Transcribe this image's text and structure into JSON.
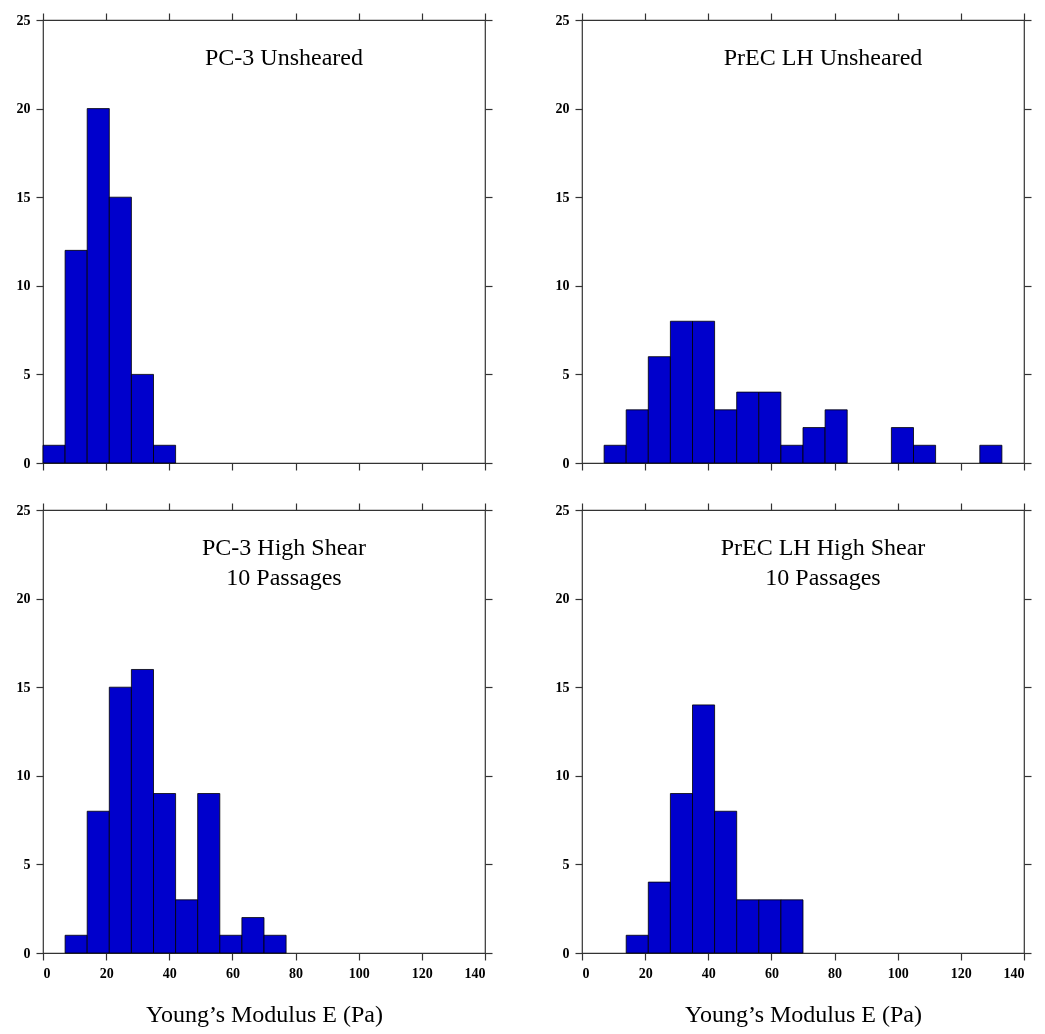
{
  "chart_data": [
    {
      "type": "histogram",
      "title": "PC-3 Unsheared",
      "bins": [
        0,
        7,
        14,
        21,
        28,
        35,
        42
      ],
      "values": [
        1,
        12,
        20,
        15,
        5,
        1
      ],
      "color": "#0000cc",
      "xlim": [
        0,
        140
      ],
      "xticks": [
        0,
        20,
        40,
        60,
        80,
        100,
        120,
        140
      ],
      "ylim": [
        0,
        25
      ],
      "yticks": [
        0,
        5,
        10,
        15,
        20,
        25
      ],
      "tick_labels": "y"
    },
    {
      "type": "histogram",
      "title": "PrEC LH Unsheared",
      "bins": [
        7,
        14,
        21,
        28,
        35,
        42,
        49,
        56,
        63,
        70,
        77,
        84,
        91,
        98,
        105,
        112,
        119,
        126,
        133
      ],
      "values": [
        1,
        3,
        6,
        8,
        8,
        3,
        4,
        4,
        1,
        2,
        3,
        0,
        0,
        2,
        1,
        0,
        0,
        1
      ],
      "color": "#0000cc",
      "xlim": [
        0,
        140
      ],
      "xticks": [
        0,
        20,
        40,
        60,
        80,
        100,
        120,
        140
      ],
      "ylim": [
        0,
        25
      ],
      "yticks": [
        0,
        5,
        10,
        15,
        20,
        25
      ],
      "tick_labels": "y"
    },
    {
      "type": "histogram",
      "title": "PC-3 High Shear",
      "subtitle": "10 Passages",
      "xlabel": "Young’s Modulus E (Pa)",
      "bins": [
        7,
        14,
        21,
        28,
        35,
        42,
        49,
        56,
        63,
        70,
        77
      ],
      "values": [
        1,
        8,
        15,
        16,
        9,
        3,
        9,
        1,
        2,
        1
      ],
      "color": "#0000cc",
      "xlim": [
        0,
        140
      ],
      "xticks": [
        0,
        20,
        40,
        60,
        80,
        100,
        120,
        140
      ],
      "ylim": [
        0,
        25
      ],
      "yticks": [
        0,
        5,
        10,
        15,
        20,
        25
      ]
    },
    {
      "type": "histogram",
      "title": "PrEC LH  High Shear",
      "subtitle": "10 Passages",
      "xlabel": "Young’s Modulus E (Pa)",
      "bins": [
        14,
        21,
        28,
        35,
        42,
        49,
        56,
        63,
        70
      ],
      "values": [
        1,
        4,
        9,
        14,
        8,
        3,
        3,
        3
      ],
      "color": "#0000cc",
      "xlim": [
        0,
        140
      ],
      "xticks": [
        0,
        20,
        40,
        60,
        80,
        100,
        120,
        140
      ],
      "ylim": [
        0,
        25
      ],
      "yticks": [
        0,
        5,
        10,
        15,
        20,
        25
      ]
    }
  ]
}
